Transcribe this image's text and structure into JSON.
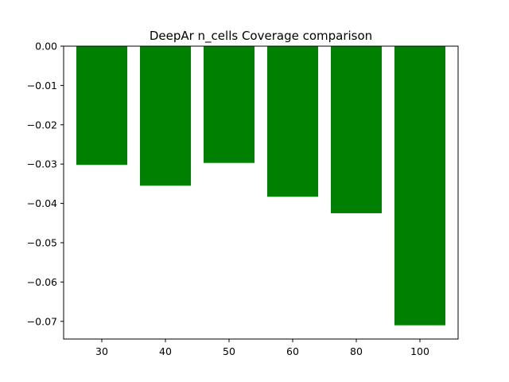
{
  "chart_data": {
    "type": "bar",
    "title": "DeepAr n_cells Coverage comparison",
    "xlabel": "",
    "ylabel": "",
    "categories": [
      "30",
      "40",
      "50",
      "60",
      "80",
      "100"
    ],
    "values": [
      -0.0302,
      -0.0355,
      -0.0297,
      -0.0383,
      -0.0425,
      -0.071
    ],
    "ylim": [
      -0.0745,
      0.0
    ],
    "yticks": [
      0.0,
      -0.01,
      -0.02,
      -0.03,
      -0.04,
      -0.05,
      -0.06,
      -0.07
    ],
    "ytick_labels": [
      "0.00",
      "−0.01",
      "−0.02",
      "−0.03",
      "−0.04",
      "−0.05",
      "−0.06",
      "−0.07"
    ],
    "grid": false,
    "legend": "none",
    "bar_color": "#008000"
  }
}
